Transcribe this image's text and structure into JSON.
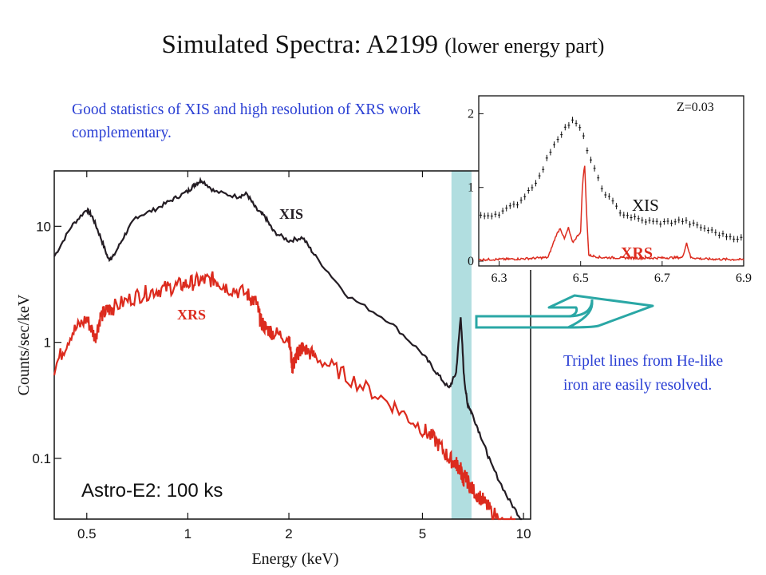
{
  "title": {
    "main": "Simulated Spectra: A2199",
    "sub": "(lower energy part)"
  },
  "note_top": "Good statistics of XIS and high resolution of XRS work complementary.",
  "note_right": "Triplet lines from He-like iron are easily resolved.",
  "colors": {
    "xis": "#231c23",
    "xrs": "#dc2b1e",
    "highlight": "#a8dadd",
    "arrow": "#2aa7a5",
    "note": "#2a3fd4"
  },
  "chart_data": [
    {
      "type": "line",
      "xscale": "log",
      "yscale": "log",
      "xlim": [
        0.4,
        10.5
      ],
      "ylim": [
        0.03,
        30
      ],
      "xlabel": "Energy (keV)",
      "ylabel": "Counts/sec/keV",
      "xticks": [
        "0.5",
        "1",
        "2",
        "5",
        "10"
      ],
      "xtick_values": [
        0.5,
        1,
        2,
        5,
        10
      ],
      "yticks": [
        "0.1",
        "1",
        "10"
      ],
      "ytick_values": [
        0.1,
        1,
        10
      ],
      "annotation": "Astro-E2: 100 ks",
      "highlight_band": [
        6.1,
        7.0
      ],
      "series": [
        {
          "name": "XIS",
          "x": [
            0.4,
            0.45,
            0.5,
            0.52,
            0.55,
            0.58,
            0.6,
            0.65,
            0.7,
            0.8,
            0.9,
            1.0,
            1.05,
            1.1,
            1.2,
            1.4,
            1.5,
            1.6,
            1.7,
            1.8,
            2.0,
            2.2,
            2.4,
            3.0,
            4.0,
            5.0,
            5.5,
            6.0,
            6.3,
            6.5,
            6.65,
            6.8,
            7.0,
            7.5,
            8.0,
            9.0,
            10.0
          ],
          "y": [
            5.5,
            10,
            14,
            12,
            8,
            5.2,
            5.5,
            8.5,
            12,
            14,
            17,
            20,
            23,
            25,
            20,
            18,
            19,
            14,
            12,
            9,
            7.5,
            8,
            5.5,
            2.5,
            1.5,
            0.8,
            0.55,
            0.4,
            0.55,
            1.7,
            0.5,
            0.3,
            0.25,
            0.15,
            0.09,
            0.045,
            0.028
          ]
        },
        {
          "name": "XRS",
          "x": [
            0.4,
            0.45,
            0.5,
            0.53,
            0.55,
            0.58,
            0.6,
            0.7,
            0.8,
            0.9,
            1.0,
            1.1,
            1.2,
            1.3,
            1.5,
            1.6,
            1.65,
            1.7,
            1.8,
            2.0,
            2.05,
            2.1,
            2.15,
            2.2,
            2.4,
            3.0,
            4.0,
            5.0,
            5.5,
            6.0,
            6.3,
            6.5,
            6.6,
            6.7,
            7.0,
            7.5,
            8.0,
            9.0,
            9.5
          ],
          "y": [
            0.6,
            1.2,
            1.6,
            1.1,
            1.7,
            1.9,
            2.0,
            2.5,
            2.8,
            3.0,
            3.2,
            3.4,
            3.5,
            3.0,
            2.6,
            2.2,
            1.5,
            1.35,
            1.2,
            1.1,
            0.6,
            0.75,
            0.85,
            0.9,
            0.75,
            0.5,
            0.3,
            0.18,
            0.14,
            0.1,
            0.09,
            0.08,
            0.065,
            0.07,
            0.055,
            0.045,
            0.035,
            0.025,
            0.03
          ]
        }
      ]
    },
    {
      "type": "scatter",
      "xlim": [
        6.25,
        6.9
      ],
      "ylim": [
        0,
        2.2
      ],
      "xticks": [
        "6.3",
        "6.5",
        "6.7",
        "6.9"
      ],
      "xtick_values": [
        6.3,
        6.5,
        6.7,
        6.9
      ],
      "yticks": [
        "0",
        "1",
        "2"
      ],
      "ytick_values": [
        0,
        1,
        2
      ],
      "annotation": "Z=0.03",
      "series": [
        {
          "name": "XIS",
          "x": [
            6.25,
            6.3,
            6.35,
            6.4,
            6.43,
            6.46,
            6.48,
            6.5,
            6.52,
            6.55,
            6.6,
            6.65,
            6.7,
            6.75,
            6.8,
            6.85,
            6.9
          ],
          "y": [
            0.6,
            0.65,
            0.8,
            1.15,
            1.55,
            1.8,
            1.9,
            1.8,
            1.45,
            1.0,
            0.65,
            0.55,
            0.52,
            0.55,
            0.45,
            0.35,
            0.3
          ]
        },
        {
          "name": "XRS",
          "x": [
            6.25,
            6.35,
            6.42,
            6.44,
            6.45,
            6.46,
            6.47,
            6.48,
            6.5,
            6.505,
            6.51,
            6.515,
            6.52,
            6.55,
            6.65,
            6.75,
            6.76,
            6.77,
            6.8,
            6.9
          ],
          "y": [
            0.02,
            0.03,
            0.05,
            0.35,
            0.45,
            0.3,
            0.45,
            0.25,
            0.4,
            1.1,
            1.3,
            0.6,
            0.08,
            0.05,
            0.04,
            0.05,
            0.25,
            0.05,
            0.03,
            0.02
          ]
        }
      ]
    }
  ]
}
